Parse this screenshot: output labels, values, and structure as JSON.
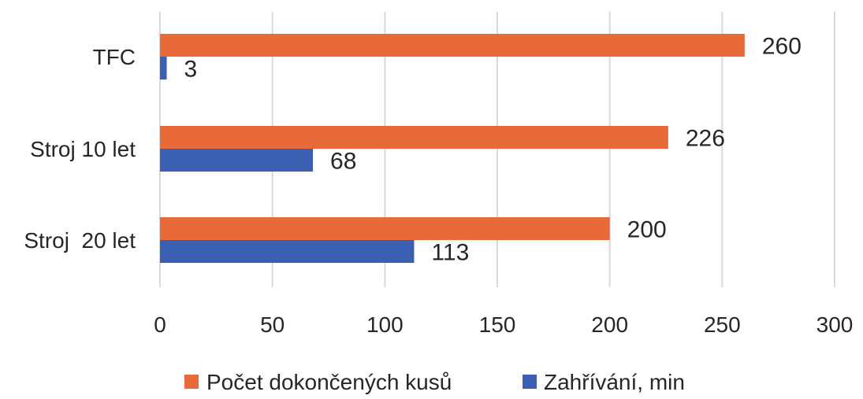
{
  "chart_data": {
    "type": "bar",
    "orientation": "horizontal",
    "categories": [
      "TFC",
      "Stroj 10 let",
      "Stroj  20 let"
    ],
    "series": [
      {
        "name": "Počet dokončených kusů",
        "values": [
          260,
          226,
          200
        ],
        "color": "#e8693a"
      },
      {
        "name": "Zahřívání, min",
        "values": [
          3,
          68,
          113
        ],
        "color": "#3a5fb3"
      }
    ],
    "xlim": [
      0,
      300
    ],
    "xticks": [
      0,
      50,
      100,
      150,
      200,
      250,
      300
    ],
    "grid": true,
    "legend_position": "bottom",
    "data_labels": true,
    "title": "",
    "xlabel": "",
    "ylabel": ""
  }
}
